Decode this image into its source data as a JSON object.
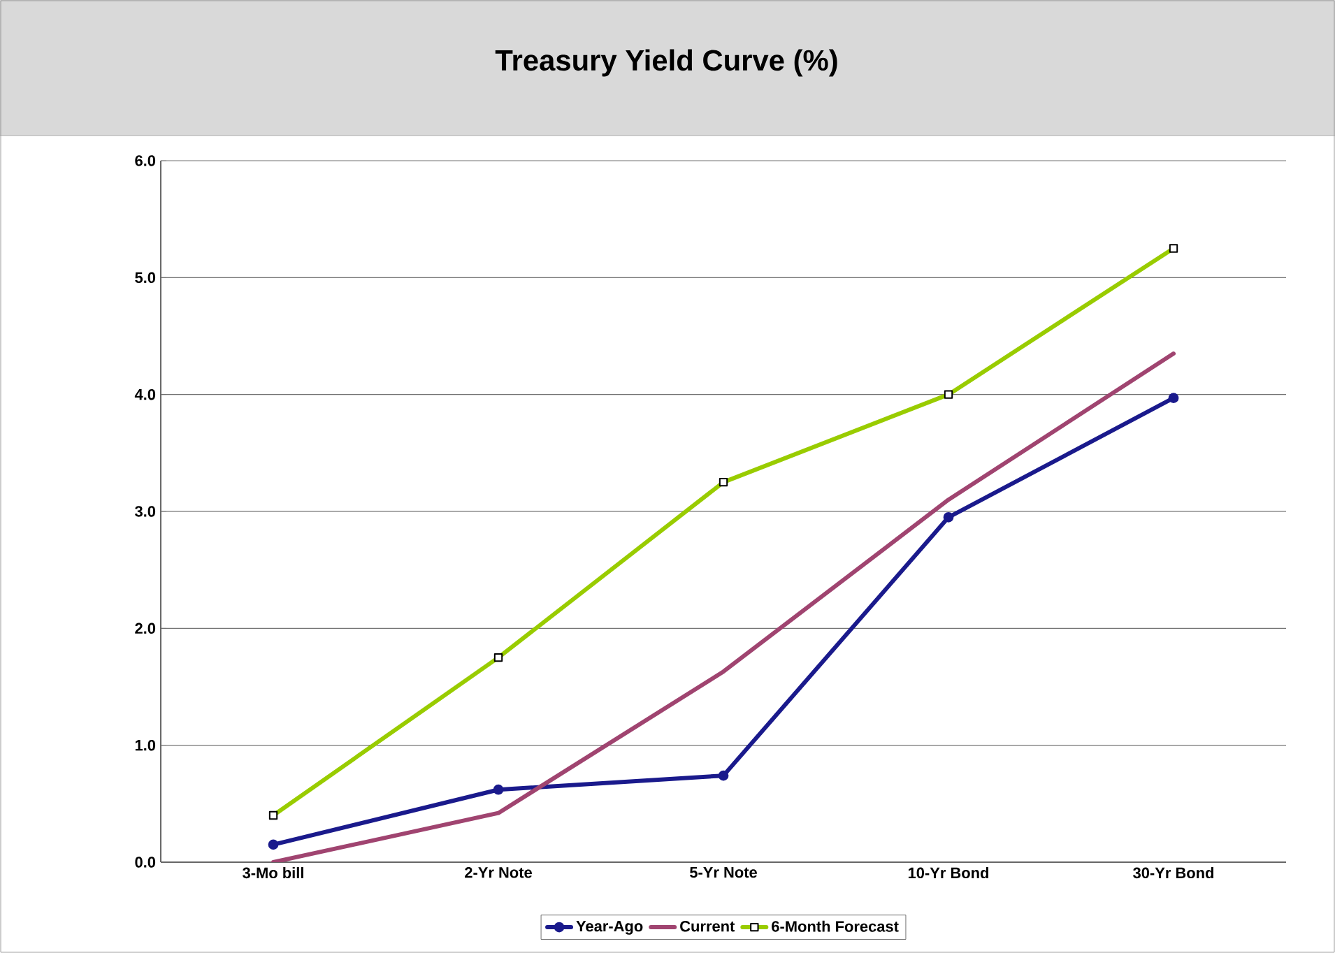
{
  "chart_data": {
    "type": "line",
    "title": "Treasury Yield Curve (%)",
    "categories": [
      "3-Mo bill",
      "2-Yr Note",
      "5-Yr Note",
      "10-Yr Bond",
      "30-Yr Bond"
    ],
    "series": [
      {
        "name": "Year-Ago",
        "color": "#1a1a8c",
        "marker": "circle",
        "values": [
          0.15,
          0.62,
          0.74,
          2.95,
          3.97
        ]
      },
      {
        "name": "Current",
        "color": "#a04470",
        "marker": "none",
        "values": [
          0.0,
          0.42,
          1.63,
          3.1,
          4.35
        ]
      },
      {
        "name": "6-Month Forecast",
        "color": "#99cc00",
        "marker": "square",
        "values": [
          0.4,
          1.75,
          3.25,
          4.0,
          5.25
        ]
      }
    ],
    "ylim": [
      0,
      6
    ],
    "yticks": [
      {
        "value": 0,
        "label": "0.0"
      },
      {
        "value": 1,
        "label": "1.0"
      },
      {
        "value": 2,
        "label": "2.0"
      },
      {
        "value": 3,
        "label": "3.0"
      },
      {
        "value": 4,
        "label": "4.0"
      },
      {
        "value": 5,
        "label": "5.0"
      },
      {
        "value": 6,
        "label": "6.0"
      }
    ],
    "grid": "y",
    "legend": "bottom",
    "line_style": "solid"
  }
}
